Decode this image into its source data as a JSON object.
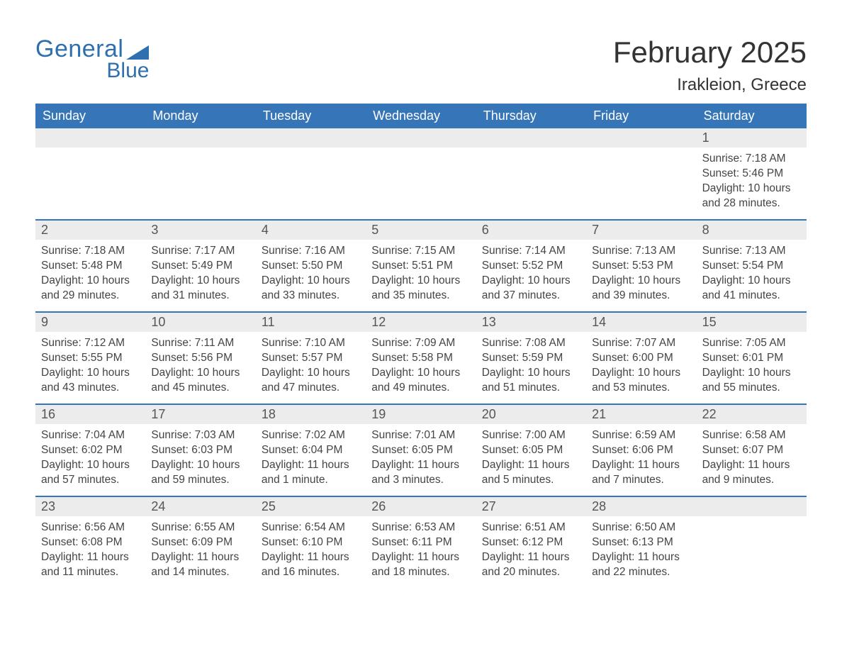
{
  "brand": {
    "general": "General",
    "blue": "Blue"
  },
  "title": "February 2025",
  "location": "Irakleion, Greece",
  "colors": {
    "header_bg": "#3676b8",
    "header_text": "#ffffff",
    "daynum_bg": "#ececec",
    "rule": "#3676b8",
    "text": "#444444",
    "brand": "#2e6fb0",
    "background": "#ffffff"
  },
  "typography": {
    "month_title_fontsize": 42,
    "location_fontsize": 24,
    "header_fontsize": 18,
    "daynum_fontsize": 18,
    "body_fontsize": 15.5
  },
  "day_names": [
    "Sunday",
    "Monday",
    "Tuesday",
    "Wednesday",
    "Thursday",
    "Friday",
    "Saturday"
  ],
  "weeks": [
    [
      null,
      null,
      null,
      null,
      null,
      null,
      {
        "n": "1",
        "sunrise": "Sunrise: 7:18 AM",
        "sunset": "Sunset: 5:46 PM",
        "daylight": "Daylight: 10 hours and 28 minutes."
      }
    ],
    [
      {
        "n": "2",
        "sunrise": "Sunrise: 7:18 AM",
        "sunset": "Sunset: 5:48 PM",
        "daylight": "Daylight: 10 hours and 29 minutes."
      },
      {
        "n": "3",
        "sunrise": "Sunrise: 7:17 AM",
        "sunset": "Sunset: 5:49 PM",
        "daylight": "Daylight: 10 hours and 31 minutes."
      },
      {
        "n": "4",
        "sunrise": "Sunrise: 7:16 AM",
        "sunset": "Sunset: 5:50 PM",
        "daylight": "Daylight: 10 hours and 33 minutes."
      },
      {
        "n": "5",
        "sunrise": "Sunrise: 7:15 AM",
        "sunset": "Sunset: 5:51 PM",
        "daylight": "Daylight: 10 hours and 35 minutes."
      },
      {
        "n": "6",
        "sunrise": "Sunrise: 7:14 AM",
        "sunset": "Sunset: 5:52 PM",
        "daylight": "Daylight: 10 hours and 37 minutes."
      },
      {
        "n": "7",
        "sunrise": "Sunrise: 7:13 AM",
        "sunset": "Sunset: 5:53 PM",
        "daylight": "Daylight: 10 hours and 39 minutes."
      },
      {
        "n": "8",
        "sunrise": "Sunrise: 7:13 AM",
        "sunset": "Sunset: 5:54 PM",
        "daylight": "Daylight: 10 hours and 41 minutes."
      }
    ],
    [
      {
        "n": "9",
        "sunrise": "Sunrise: 7:12 AM",
        "sunset": "Sunset: 5:55 PM",
        "daylight": "Daylight: 10 hours and 43 minutes."
      },
      {
        "n": "10",
        "sunrise": "Sunrise: 7:11 AM",
        "sunset": "Sunset: 5:56 PM",
        "daylight": "Daylight: 10 hours and 45 minutes."
      },
      {
        "n": "11",
        "sunrise": "Sunrise: 7:10 AM",
        "sunset": "Sunset: 5:57 PM",
        "daylight": "Daylight: 10 hours and 47 minutes."
      },
      {
        "n": "12",
        "sunrise": "Sunrise: 7:09 AM",
        "sunset": "Sunset: 5:58 PM",
        "daylight": "Daylight: 10 hours and 49 minutes."
      },
      {
        "n": "13",
        "sunrise": "Sunrise: 7:08 AM",
        "sunset": "Sunset: 5:59 PM",
        "daylight": "Daylight: 10 hours and 51 minutes."
      },
      {
        "n": "14",
        "sunrise": "Sunrise: 7:07 AM",
        "sunset": "Sunset: 6:00 PM",
        "daylight": "Daylight: 10 hours and 53 minutes."
      },
      {
        "n": "15",
        "sunrise": "Sunrise: 7:05 AM",
        "sunset": "Sunset: 6:01 PM",
        "daylight": "Daylight: 10 hours and 55 minutes."
      }
    ],
    [
      {
        "n": "16",
        "sunrise": "Sunrise: 7:04 AM",
        "sunset": "Sunset: 6:02 PM",
        "daylight": "Daylight: 10 hours and 57 minutes."
      },
      {
        "n": "17",
        "sunrise": "Sunrise: 7:03 AM",
        "sunset": "Sunset: 6:03 PM",
        "daylight": "Daylight: 10 hours and 59 minutes."
      },
      {
        "n": "18",
        "sunrise": "Sunrise: 7:02 AM",
        "sunset": "Sunset: 6:04 PM",
        "daylight": "Daylight: 11 hours and 1 minute."
      },
      {
        "n": "19",
        "sunrise": "Sunrise: 7:01 AM",
        "sunset": "Sunset: 6:05 PM",
        "daylight": "Daylight: 11 hours and 3 minutes."
      },
      {
        "n": "20",
        "sunrise": "Sunrise: 7:00 AM",
        "sunset": "Sunset: 6:05 PM",
        "daylight": "Daylight: 11 hours and 5 minutes."
      },
      {
        "n": "21",
        "sunrise": "Sunrise: 6:59 AM",
        "sunset": "Sunset: 6:06 PM",
        "daylight": "Daylight: 11 hours and 7 minutes."
      },
      {
        "n": "22",
        "sunrise": "Sunrise: 6:58 AM",
        "sunset": "Sunset: 6:07 PM",
        "daylight": "Daylight: 11 hours and 9 minutes."
      }
    ],
    [
      {
        "n": "23",
        "sunrise": "Sunrise: 6:56 AM",
        "sunset": "Sunset: 6:08 PM",
        "daylight": "Daylight: 11 hours and 11 minutes."
      },
      {
        "n": "24",
        "sunrise": "Sunrise: 6:55 AM",
        "sunset": "Sunset: 6:09 PM",
        "daylight": "Daylight: 11 hours and 14 minutes."
      },
      {
        "n": "25",
        "sunrise": "Sunrise: 6:54 AM",
        "sunset": "Sunset: 6:10 PM",
        "daylight": "Daylight: 11 hours and 16 minutes."
      },
      {
        "n": "26",
        "sunrise": "Sunrise: 6:53 AM",
        "sunset": "Sunset: 6:11 PM",
        "daylight": "Daylight: 11 hours and 18 minutes."
      },
      {
        "n": "27",
        "sunrise": "Sunrise: 6:51 AM",
        "sunset": "Sunset: 6:12 PM",
        "daylight": "Daylight: 11 hours and 20 minutes."
      },
      {
        "n": "28",
        "sunrise": "Sunrise: 6:50 AM",
        "sunset": "Sunset: 6:13 PM",
        "daylight": "Daylight: 11 hours and 22 minutes."
      },
      null
    ]
  ]
}
